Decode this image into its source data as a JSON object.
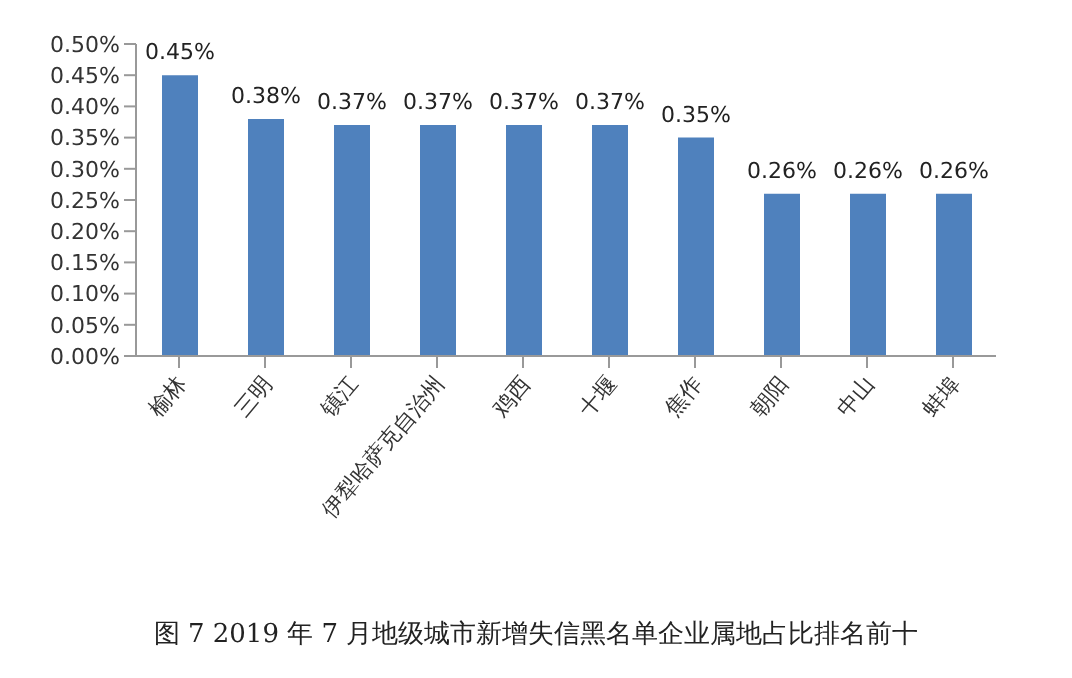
{
  "chart_data": {
    "type": "bar",
    "title": "图 7 2019 年 7 月地级城市新增失信黑名单企业属地占比排名前十",
    "categories": [
      "榆林",
      "三明",
      "镇江",
      "伊犁哈萨克自治州",
      "鸡西",
      "十堰",
      "焦作",
      "朝阳",
      "中山",
      "蚌埠"
    ],
    "values": [
      0.45,
      0.38,
      0.37,
      0.37,
      0.37,
      0.37,
      0.35,
      0.26,
      0.26,
      0.26
    ],
    "value_labels": [
      "0.45%",
      "0.38%",
      "0.37%",
      "0.37%",
      "0.37%",
      "0.37%",
      "0.35%",
      "0.26%",
      "0.26%",
      "0.26%"
    ],
    "color": "#4f81bd",
    "ylim": [
      0,
      0.5
    ],
    "yticks": [
      {
        "value": 0,
        "label": "0.00%"
      },
      {
        "value": 0.05,
        "label": "0.05%"
      },
      {
        "value": 0.1,
        "label": "0.10%"
      },
      {
        "value": 0.15,
        "label": "0.15%"
      },
      {
        "value": 0.2,
        "label": "0.20%"
      },
      {
        "value": 0.25,
        "label": "0.25%"
      },
      {
        "value": 0.3,
        "label": "0.30%"
      },
      {
        "value": 0.35,
        "label": "0.35%"
      },
      {
        "value": 0.4,
        "label": "0.40%"
      },
      {
        "value": 0.45,
        "label": "0.45%"
      },
      {
        "value": 0.5,
        "label": "0.50%"
      }
    ],
    "grid": false,
    "legend": false
  }
}
